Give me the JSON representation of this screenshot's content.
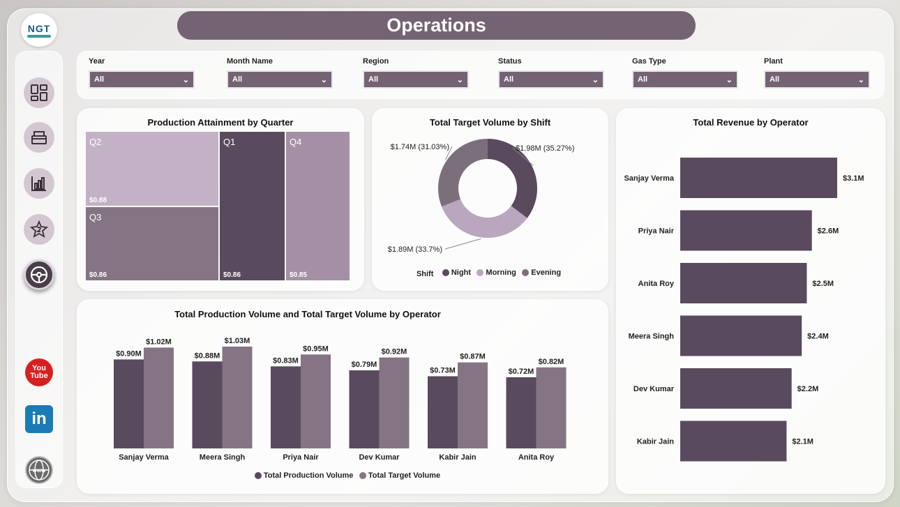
{
  "header": {
    "title": "Operations",
    "logo_text": "NGT"
  },
  "sidebar": {
    "nav": [
      {
        "name": "overview",
        "icon": "dashboard-grid-icon",
        "active": false
      },
      {
        "name": "inventory",
        "icon": "box-icon",
        "active": false
      },
      {
        "name": "analytics",
        "icon": "bar-chart-icon",
        "active": false
      },
      {
        "name": "quality",
        "icon": "star-badge-icon",
        "active": false
      },
      {
        "name": "operations",
        "icon": "steering-wheel-icon",
        "active": true
      }
    ],
    "social": [
      {
        "name": "youtube",
        "icon": "youtube-icon",
        "label_top": "You",
        "label_bottom": "Tube"
      },
      {
        "name": "linkedin",
        "icon": "linkedin-icon",
        "label": "in"
      },
      {
        "name": "website",
        "icon": "globe-icon",
        "label": "www"
      }
    ]
  },
  "filters": [
    {
      "label": "Year",
      "value": "All"
    },
    {
      "label": "Month Name",
      "value": "All"
    },
    {
      "label": "Region",
      "value": "All"
    },
    {
      "label": "Status",
      "value": "All"
    },
    {
      "label": "Gas Type",
      "value": "All"
    },
    {
      "label": "Plant",
      "value": "All"
    }
  ],
  "colors": {
    "accent": "#746473",
    "night": "#5a4a5d",
    "morning": "#b9a6bf",
    "evening": "#7b6f7b",
    "production": "#5a4a5d",
    "target": "#857584",
    "revenue": "#5a4a5d"
  },
  "charts": {
    "treemap": {
      "title": "Production Attainment by Quarter",
      "chart_data": {
        "type": "treemap",
        "items": [
          {
            "label": "Q2",
            "value": "$0.88",
            "color": "#c3b2c6"
          },
          {
            "label": "Q3",
            "value": "$0.86",
            "color": "#857584"
          },
          {
            "label": "Q1",
            "value": "$0.86",
            "color": "#5a4a5d"
          },
          {
            "label": "Q4",
            "value": "$0.85",
            "color": "#a48fa5"
          }
        ]
      }
    },
    "donut": {
      "title": "Total Target Volume by Shift",
      "chart_data": {
        "type": "pie",
        "legend_title": "Shift",
        "slices": [
          {
            "name": "Night",
            "value": 35.27,
            "label": "$1.98M (35.27%)",
            "color": "#5a4a5d"
          },
          {
            "name": "Morning",
            "value": 33.7,
            "label": "$1.89M (33.7%)",
            "color": "#b9a6bf"
          },
          {
            "name": "Evening",
            "value": 31.03,
            "label": "$1.74M (31.03%)",
            "color": "#7b6f7b"
          }
        ]
      }
    },
    "revenue": {
      "title": "Total Revenue by Operator",
      "chart_data": {
        "type": "bar",
        "orientation": "horizontal",
        "categories": [
          "Sanjay Verma",
          "Priya Nair",
          "Anita Roy",
          "Meera Singh",
          "Dev Kumar",
          "Kabir Jain"
        ],
        "values": [
          3.1,
          2.6,
          2.5,
          2.4,
          2.2,
          2.1
        ],
        "labels": [
          "$3.1M",
          "$2.6M",
          "$2.5M",
          "$2.4M",
          "$2.2M",
          "$2.1M"
        ],
        "xlim": [
          0,
          3.5
        ]
      }
    },
    "production": {
      "title": "Total Production Volume and Total Target Volume by Operator",
      "chart_data": {
        "type": "bar",
        "categories": [
          "Sanjay Verma",
          "Meera Singh",
          "Priya Nair",
          "Dev Kumar",
          "Kabir Jain",
          "Anita Roy"
        ],
        "series": [
          {
            "name": "Total Production Volume",
            "values": [
              0.9,
              0.88,
              0.83,
              0.79,
              0.73,
              0.72
            ],
            "labels": [
              "$0.90M",
              "$0.88M",
              "$0.83M",
              "$0.79M",
              "$0.73M",
              "$0.72M"
            ],
            "color": "#5a4a5d"
          },
          {
            "name": "Total Target Volume",
            "values": [
              1.02,
              1.03,
              0.95,
              0.92,
              0.87,
              0.82
            ],
            "labels": [
              "$1.02M",
              "$1.03M",
              "$0.95M",
              "$0.92M",
              "$0.87M",
              "$0.82M"
            ],
            "color": "#857584"
          }
        ],
        "ylim": [
          0,
          1.03
        ]
      }
    }
  }
}
